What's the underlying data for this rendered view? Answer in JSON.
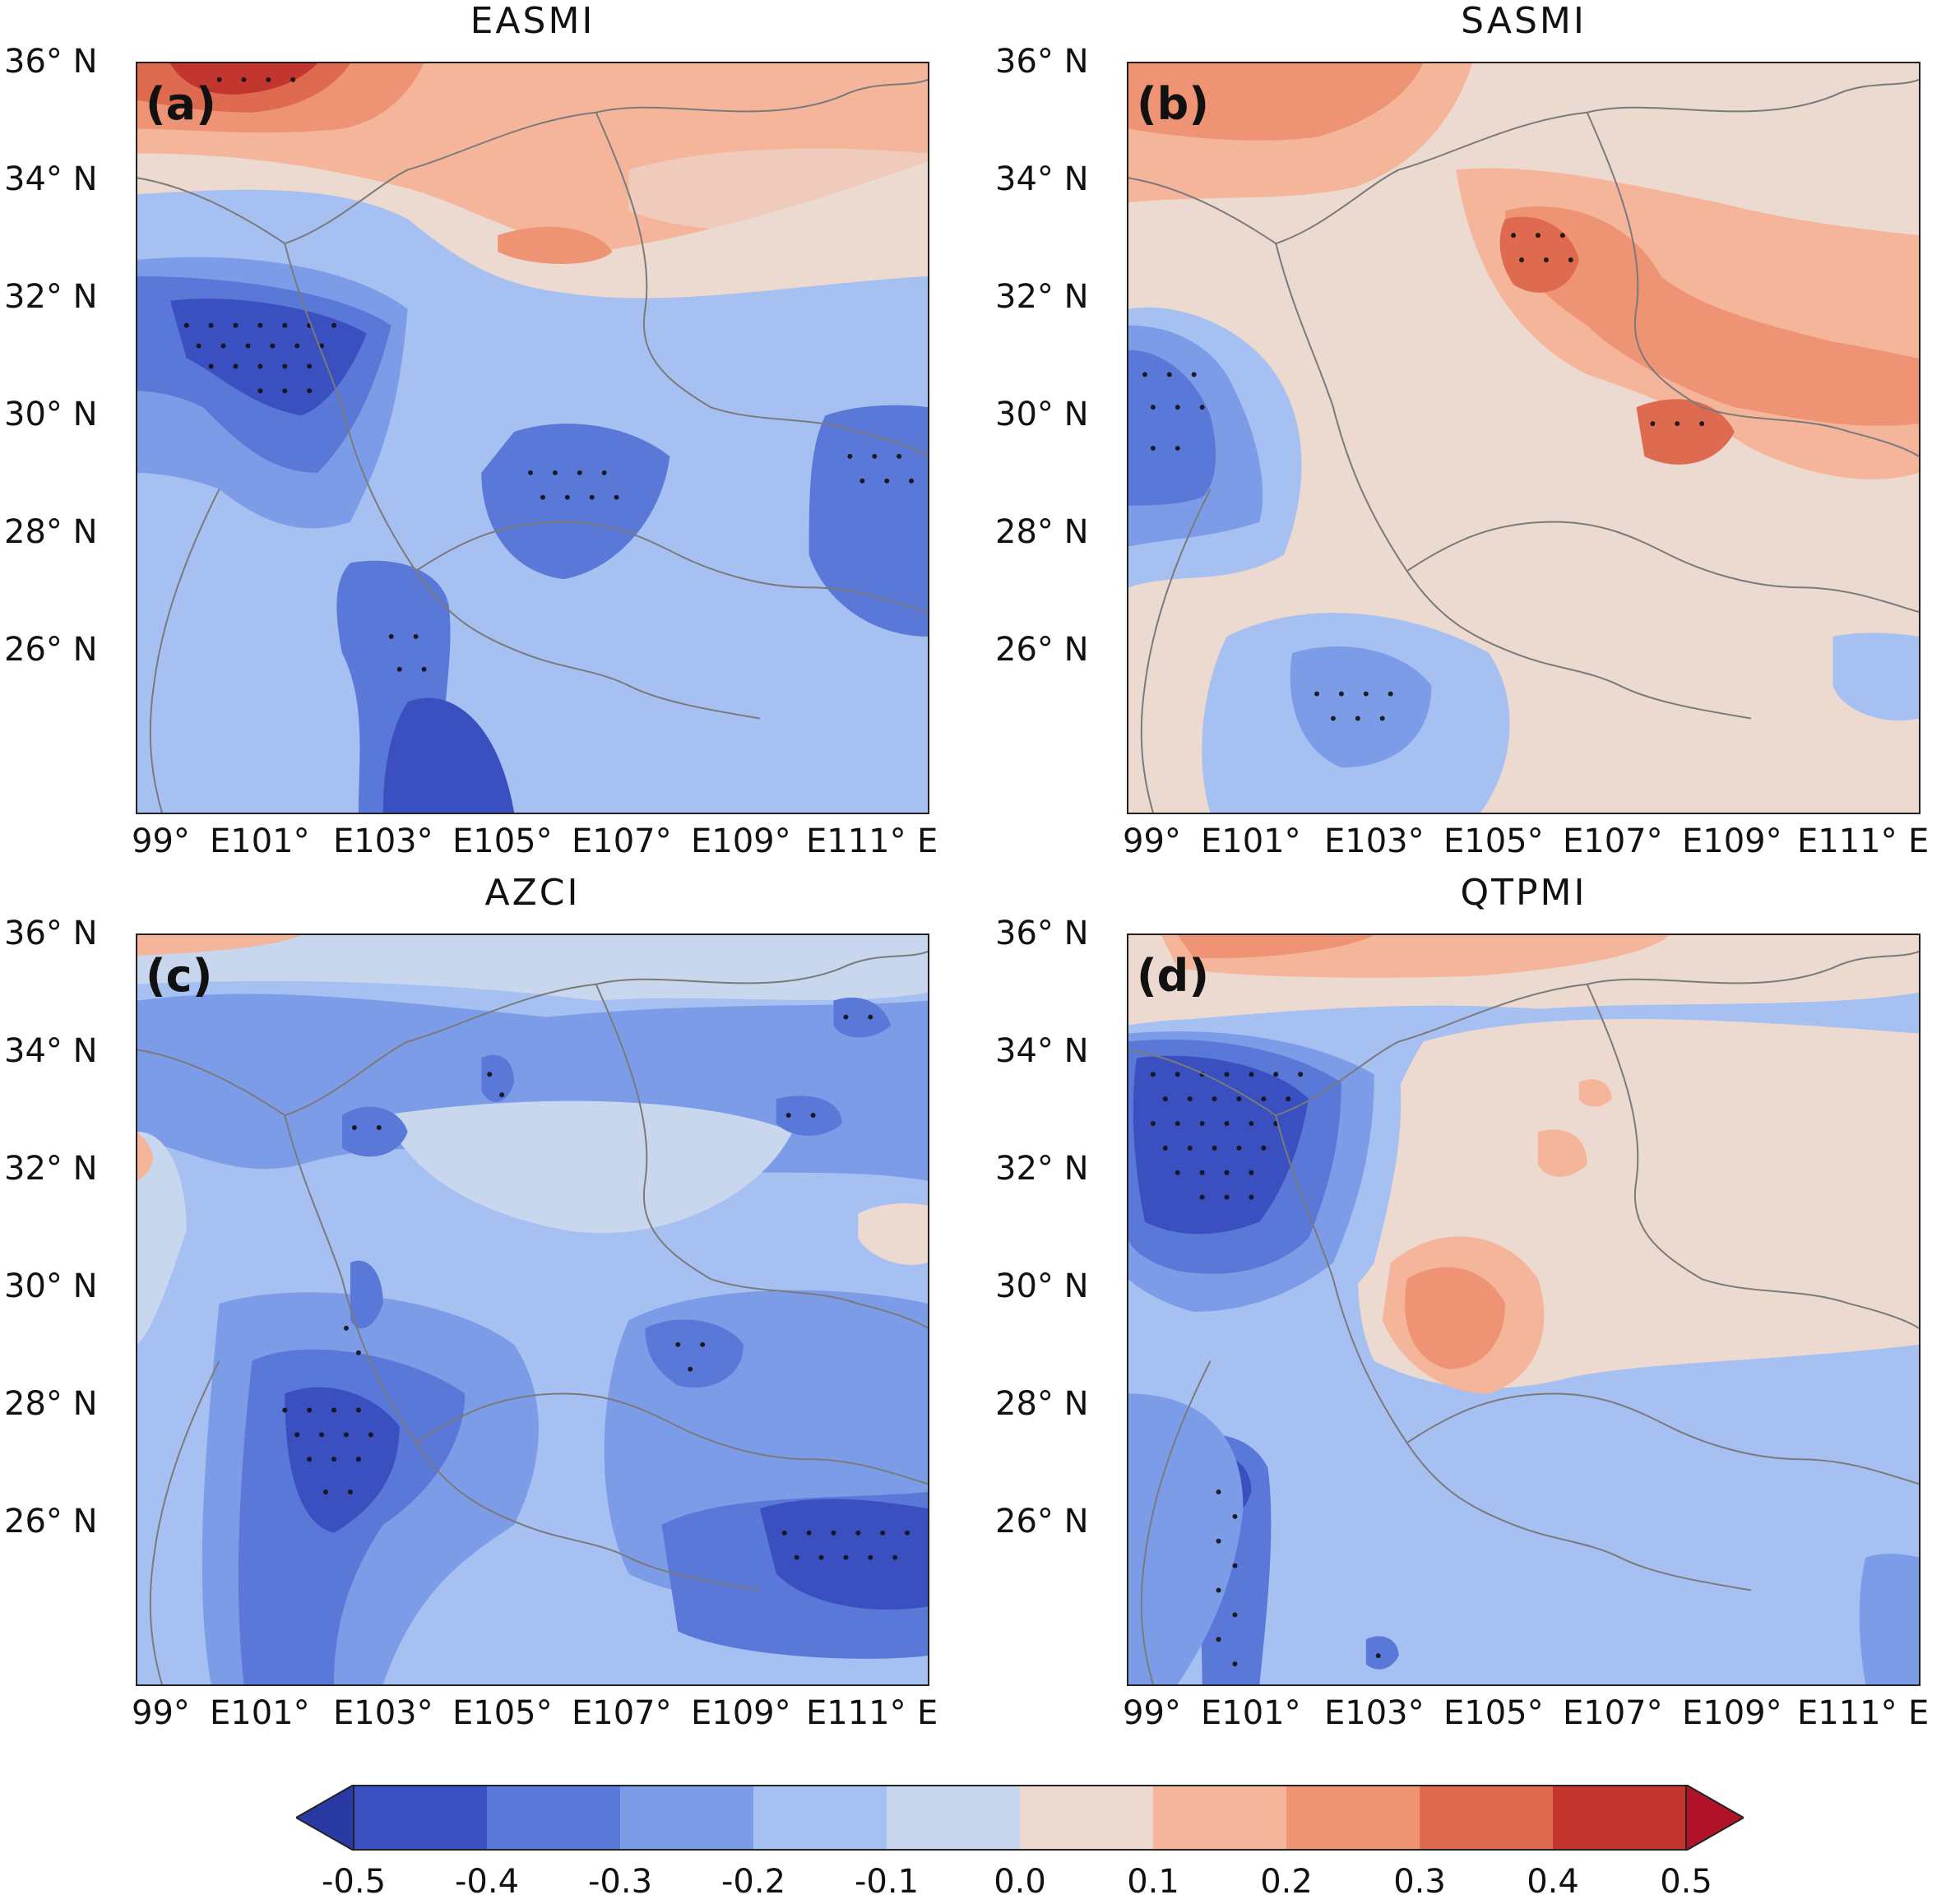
{
  "panels": [
    {
      "id": "a",
      "label": "(a)",
      "title": "EASMI"
    },
    {
      "id": "b",
      "label": "(b)",
      "title": "SASMI"
    },
    {
      "id": "c",
      "label": "(c)",
      "title": "AZCI"
    },
    {
      "id": "d",
      "label": "(d)",
      "title": "QTPMI"
    }
  ],
  "y_ticks": [
    "36° N",
    "34° N",
    "32° N",
    "30° N",
    "28° N",
    "26° N"
  ],
  "x_ticks": [
    "99°",
    "E101°",
    "E103°",
    "E105°",
    "E107°",
    "E109°",
    "E111°",
    "E"
  ],
  "colorbar": {
    "ticks": [
      "-0.5",
      "-0.4",
      "-0.3",
      "-0.2",
      "-0.1",
      "0.0",
      "0.1",
      "0.2",
      "0.3",
      "0.4",
      "0.5"
    ],
    "colors": [
      "#3a4fc0",
      "#5a78d8",
      "#7d9ce8",
      "#a6c0f2",
      "#c8d6ee",
      "#ecd9d0",
      "#f5b59a",
      "#ee9374",
      "#de6a50",
      "#c33630"
    ],
    "under_color": "#2a3aa5",
    "over_color": "#b01228"
  }
}
